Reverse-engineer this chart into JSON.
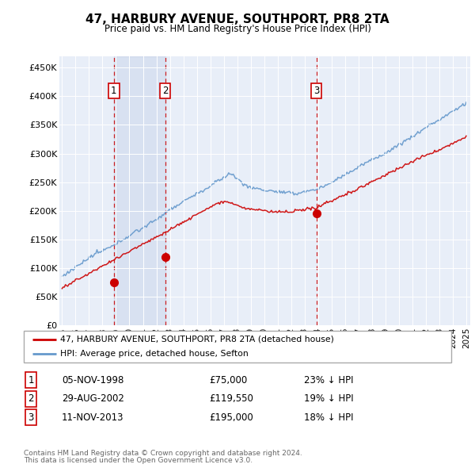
{
  "title": "47, HARBURY AVENUE, SOUTHPORT, PR8 2TA",
  "subtitle": "Price paid vs. HM Land Registry's House Price Index (HPI)",
  "ylabel_ticks": [
    "£0",
    "£50K",
    "£100K",
    "£150K",
    "£200K",
    "£250K",
    "£300K",
    "£350K",
    "£400K",
    "£450K"
  ],
  "ytick_values": [
    0,
    50000,
    100000,
    150000,
    200000,
    250000,
    300000,
    350000,
    400000,
    450000
  ],
  "ylim": [
    0,
    470000
  ],
  "xlim_start": 1994.8,
  "xlim_end": 2025.3,
  "transactions": [
    {
      "id": 1,
      "date_x": 1998.85,
      "price": 75000,
      "label": "1",
      "date_str": "05-NOV-1998",
      "price_str": "£75,000",
      "pct_str": "23% ↓ HPI"
    },
    {
      "id": 2,
      "date_x": 2002.66,
      "price": 119550,
      "label": "2",
      "date_str": "29-AUG-2002",
      "price_str": "£119,550",
      "pct_str": "19% ↓ HPI"
    },
    {
      "id": 3,
      "date_x": 2013.87,
      "price": 195000,
      "label": "3",
      "date_str": "11-NOV-2013",
      "price_str": "£195,000",
      "pct_str": "18% ↓ HPI"
    }
  ],
  "legend_line1": "47, HARBURY AVENUE, SOUTHPORT, PR8 2TA (detached house)",
  "legend_line2": "HPI: Average price, detached house, Sefton",
  "footer1": "Contains HM Land Registry data © Crown copyright and database right 2024.",
  "footer2": "This data is licensed under the Open Government Licence v3.0.",
  "red_color": "#cc0000",
  "blue_color": "#6699cc",
  "bg_color": "#e8eef8",
  "vline_color": "#cc0000",
  "shade_color": "#dce6f5"
}
